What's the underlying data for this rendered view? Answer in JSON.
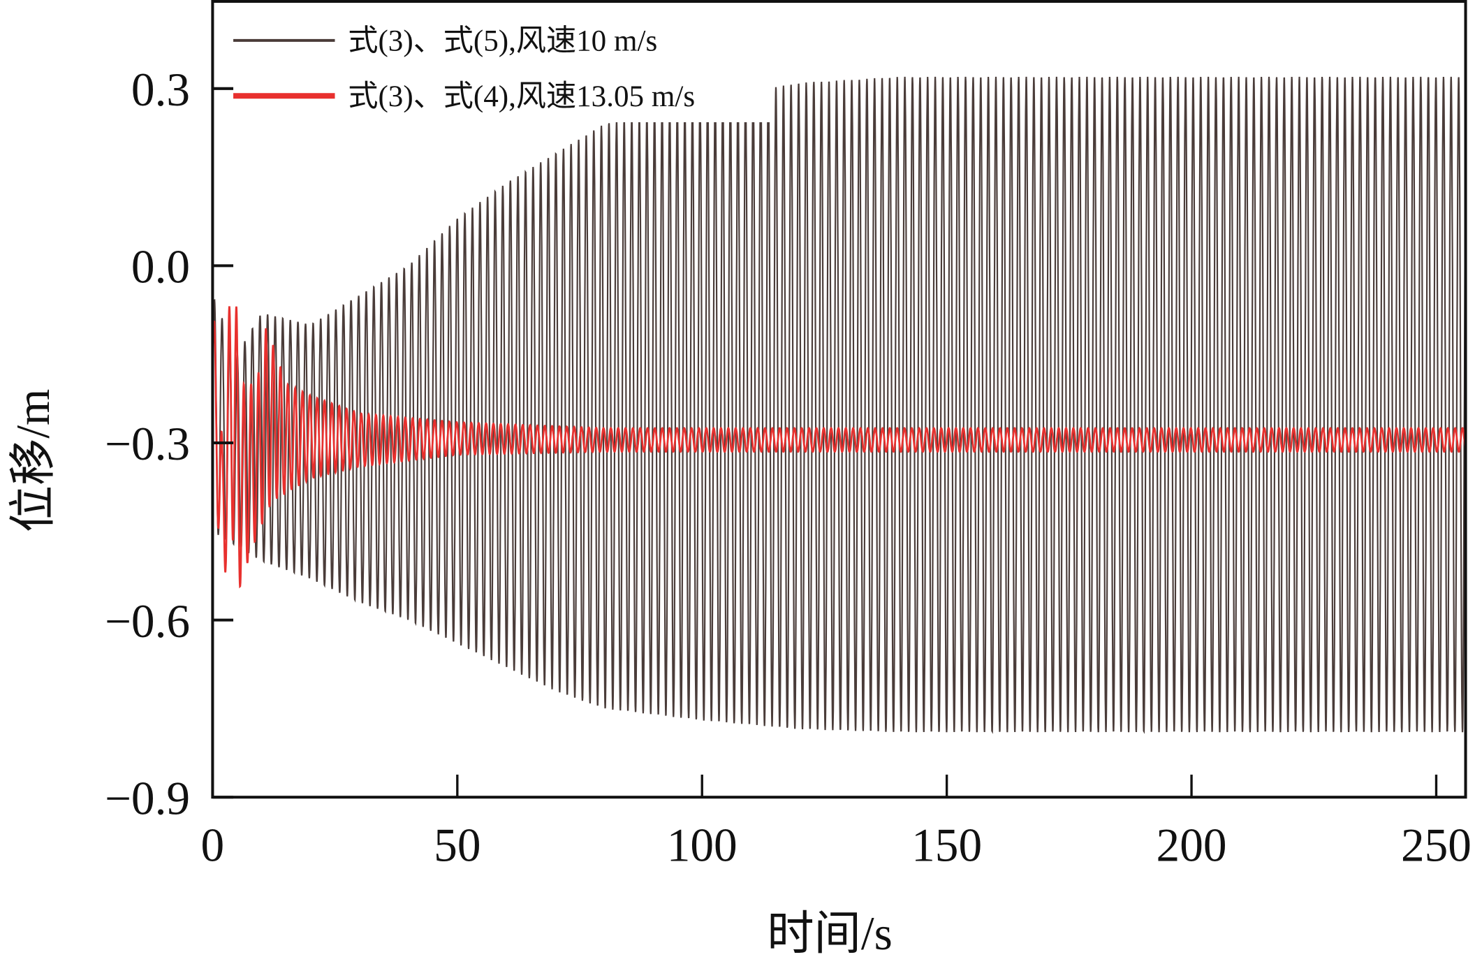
{
  "chart_data": {
    "type": "line",
    "title": "",
    "xlabel": "时间/s",
    "ylabel": "位移/m",
    "xlim": [
      0,
      256
    ],
    "ylim": [
      -0.9,
      0.45
    ],
    "xticks": [
      0,
      50,
      100,
      150,
      200,
      250
    ],
    "xtick_labels": [
      "0",
      "50",
      "100",
      "150",
      "200",
      "250"
    ],
    "yticks": [
      0.3,
      0.0,
      -0.3,
      -0.6,
      -0.9
    ],
    "ytick_labels": [
      "0.3",
      "0.0",
      "−0.3",
      "−0.6",
      "−0.9"
    ],
    "grid": false,
    "legend_position": "top-left",
    "series": [
      {
        "name": "式(3)、式(5),风速10 m/s",
        "color": "#4a3c39",
        "period": 1.55,
        "envelope_upper": [
          [
            0,
            -0.05
          ],
          [
            5,
            -0.15
          ],
          [
            10,
            -0.08
          ],
          [
            20,
            -0.1
          ],
          [
            30,
            -0.05
          ],
          [
            40,
            0.0
          ],
          [
            50,
            0.08
          ],
          [
            60,
            0.14
          ],
          [
            70,
            0.19
          ],
          [
            80,
            0.24
          ],
          [
            100,
            0.28
          ],
          [
            120,
            0.31
          ],
          [
            140,
            0.32
          ],
          [
            256,
            0.32
          ]
        ],
        "envelope_lower": [
          [
            0,
            -0.45
          ],
          [
            10,
            -0.5
          ],
          [
            20,
            -0.53
          ],
          [
            30,
            -0.57
          ],
          [
            40,
            -0.6
          ],
          [
            50,
            -0.64
          ],
          [
            60,
            -0.68
          ],
          [
            70,
            -0.72
          ],
          [
            80,
            -0.75
          ],
          [
            100,
            -0.77
          ],
          [
            120,
            -0.785
          ],
          [
            140,
            -0.79
          ],
          [
            256,
            -0.79
          ]
        ]
      },
      {
        "name": "式(3)、式(4),风速13.05 m/s",
        "color": "#e8302e",
        "period": 1.5,
        "envelope_upper": [
          [
            0,
            -0.05
          ],
          [
            2,
            -0.3
          ],
          [
            4,
            0.03
          ],
          [
            6,
            -0.2
          ],
          [
            9,
            -0.2
          ],
          [
            11,
            -0.1
          ],
          [
            15,
            -0.2
          ],
          [
            20,
            -0.22
          ],
          [
            30,
            -0.25
          ],
          [
            50,
            -0.265
          ],
          [
            80,
            -0.275
          ],
          [
            256,
            -0.275
          ]
        ],
        "envelope_lower": [
          [
            0,
            -0.3
          ],
          [
            2,
            -0.55
          ],
          [
            4,
            -0.45
          ],
          [
            5,
            -0.56
          ],
          [
            8,
            -0.48
          ],
          [
            12,
            -0.4
          ],
          [
            20,
            -0.36
          ],
          [
            30,
            -0.34
          ],
          [
            50,
            -0.32
          ],
          [
            80,
            -0.315
          ],
          [
            256,
            -0.315
          ]
        ]
      }
    ]
  }
}
